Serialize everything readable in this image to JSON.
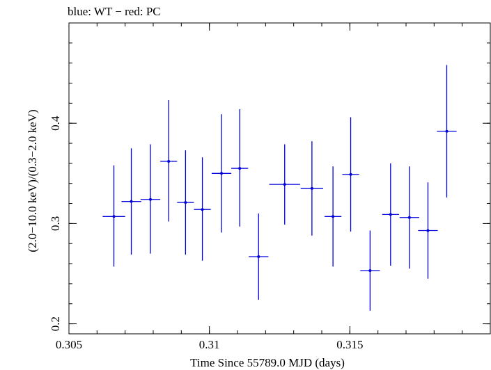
{
  "chart_data": {
    "type": "scatter",
    "title": "blue: WT − red: PC",
    "xlabel": "Time Since 55789.0 MJD (days)",
    "ylabel": "(2.0−10.0 keV)/(0.3−2.0 keV)",
    "xlim": [
      0.305,
      0.32
    ],
    "ylim": [
      0.19,
      0.5
    ],
    "x_ticks": [
      {
        "value": 0.305,
        "label": "0.305"
      },
      {
        "value": 0.31,
        "label": "0.31"
      },
      {
        "value": 0.315,
        "label": "0.315"
      }
    ],
    "y_ticks": [
      {
        "value": 0.2,
        "label": "0.2"
      },
      {
        "value": 0.3,
        "label": "0.3"
      },
      {
        "value": 0.4,
        "label": "0.4"
      }
    ],
    "x_minor_step": 0.001,
    "y_minor_step": 0.02,
    "grid": false,
    "series": [
      {
        "color": "#0000dd",
        "points": [
          {
            "x": 0.3066,
            "xerr": 0.0004,
            "y": 0.307,
            "yerr_lo": 0.05,
            "yerr_hi": 0.051
          },
          {
            "x": 0.30722,
            "xerr": 0.00035,
            "y": 0.322,
            "yerr_lo": 0.053,
            "yerr_hi": 0.053
          },
          {
            "x": 0.3079,
            "xerr": 0.00035,
            "y": 0.324,
            "yerr_lo": 0.054,
            "yerr_hi": 0.055
          },
          {
            "x": 0.30855,
            "xerr": 0.0003,
            "y": 0.362,
            "yerr_lo": 0.06,
            "yerr_hi": 0.061
          },
          {
            "x": 0.30915,
            "xerr": 0.0003,
            "y": 0.321,
            "yerr_lo": 0.052,
            "yerr_hi": 0.052
          },
          {
            "x": 0.30975,
            "xerr": 0.0003,
            "y": 0.314,
            "yerr_lo": 0.051,
            "yerr_hi": 0.052
          },
          {
            "x": 0.31043,
            "xerr": 0.00035,
            "y": 0.35,
            "yerr_lo": 0.059,
            "yerr_hi": 0.059
          },
          {
            "x": 0.31108,
            "xerr": 0.0003,
            "y": 0.355,
            "yerr_lo": 0.058,
            "yerr_hi": 0.059
          },
          {
            "x": 0.31175,
            "xerr": 0.00035,
            "y": 0.267,
            "yerr_lo": 0.043,
            "yerr_hi": 0.043
          },
          {
            "x": 0.31268,
            "xerr": 0.00055,
            "y": 0.339,
            "yerr_lo": 0.04,
            "yerr_hi": 0.04
          },
          {
            "x": 0.31365,
            "xerr": 0.0004,
            "y": 0.335,
            "yerr_lo": 0.047,
            "yerr_hi": 0.047
          },
          {
            "x": 0.3144,
            "xerr": 0.0003,
            "y": 0.307,
            "yerr_lo": 0.05,
            "yerr_hi": 0.05
          },
          {
            "x": 0.31503,
            "xerr": 0.0003,
            "y": 0.349,
            "yerr_lo": 0.057,
            "yerr_hi": 0.057
          },
          {
            "x": 0.31572,
            "xerr": 0.00035,
            "y": 0.253,
            "yerr_lo": 0.04,
            "yerr_hi": 0.04
          },
          {
            "x": 0.31645,
            "xerr": 0.0003,
            "y": 0.309,
            "yerr_lo": 0.051,
            "yerr_hi": 0.051
          },
          {
            "x": 0.31712,
            "xerr": 0.00035,
            "y": 0.306,
            "yerr_lo": 0.051,
            "yerr_hi": 0.051
          },
          {
            "x": 0.31778,
            "xerr": 0.00035,
            "y": 0.293,
            "yerr_lo": 0.048,
            "yerr_hi": 0.048
          },
          {
            "x": 0.31845,
            "xerr": 0.00035,
            "y": 0.392,
            "yerr_lo": 0.066,
            "yerr_hi": 0.066
          }
        ]
      }
    ]
  }
}
